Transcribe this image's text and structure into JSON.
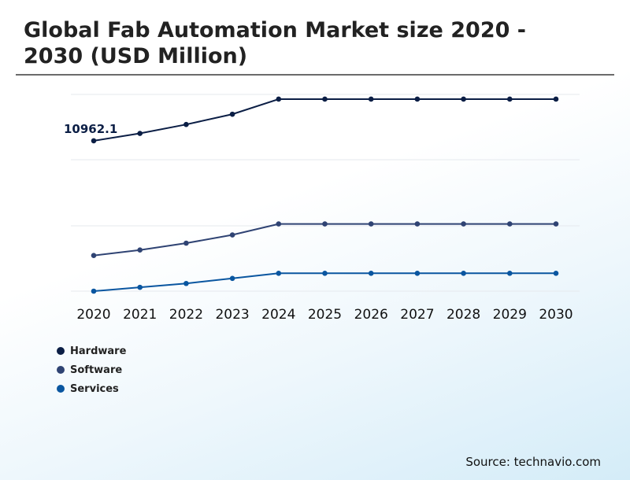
{
  "title": "Global Fab Automation Market size 2020 - 2030 (USD Million)",
  "source": "Source: technavio.com",
  "chart_data": {
    "type": "line",
    "title": "Global Fab Automation Market size 2020 - 2030 (USD Million)",
    "x": [
      "2020",
      "2021",
      "2022",
      "2023",
      "2024",
      "2025",
      "2026",
      "2027",
      "2028",
      "2029",
      "2030"
    ],
    "ylim": [
      0,
      14400
    ],
    "grid": true,
    "legend_position": "bottom-left",
    "series": [
      {
        "name": "Hardware",
        "color": "#0b1e45",
        "values": [
          10962.1,
          11500,
          12150,
          12900,
          14000,
          14000,
          14000,
          14000,
          14000,
          14000,
          14000
        ]
      },
      {
        "name": "Software",
        "color": "#2f4373",
        "values": [
          2600,
          3000,
          3500,
          4100,
          4900,
          4900,
          4900,
          4900,
          4900,
          4900,
          4900
        ]
      },
      {
        "name": "Services",
        "color": "#0a56a0",
        "values": [
          0,
          280,
          560,
          930,
          1300,
          1300,
          1300,
          1300,
          1300,
          1300,
          1300
        ]
      }
    ],
    "annotations": [
      {
        "series": 0,
        "index": 0,
        "text": "10962.1"
      }
    ]
  }
}
